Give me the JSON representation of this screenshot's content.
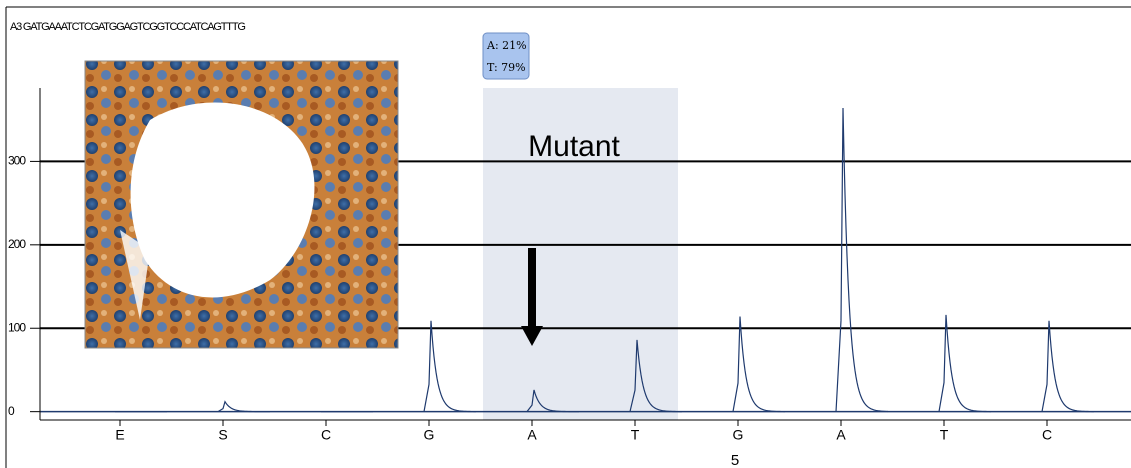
{
  "sequence_label": "A3 GATGAAATCTCGATGGAGTCGGTCCCATCAGTTTG",
  "chart_data": {
    "type": "pyrogram",
    "categories": [
      "E",
      "S",
      "C",
      "G",
      "A",
      "T",
      "G",
      "A",
      "T",
      "C"
    ],
    "values": [
      0,
      12,
      0,
      109,
      26,
      86,
      114,
      364,
      116,
      109
    ],
    "color": "#1f3a6e",
    "ylim": [
      -10,
      388
    ],
    "yticks": [
      0,
      100,
      200,
      300
    ],
    "grid": true,
    "annotation": "Mutant",
    "tooltip": [
      "A: 21%",
      "T: 79%"
    ],
    "position_label": "5"
  }
}
